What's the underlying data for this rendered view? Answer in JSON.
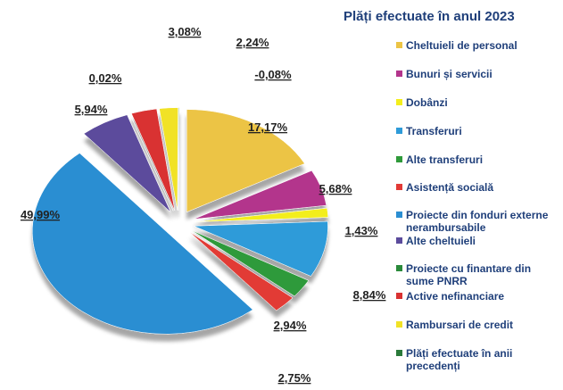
{
  "chart_data": {
    "type": "pie",
    "title": "Plăți efectuate în anul 2023",
    "categories": [
      "Cheltuieli de personal",
      "Bunuri și servicii",
      "Dobânzi",
      "Transferuri",
      "Alte transferuri",
      "Asistență socială",
      "Proiecte din fonduri externe nerambursabile",
      "Alte cheltuieli",
      "Proiecte cu finantare din sume PNRR",
      "Active nefinanciare",
      "Rambursari de credit",
      "Plăți efectuate în anii precedenți"
    ],
    "values": [
      17.17,
      5.68,
      1.43,
      8.84,
      2.94,
      2.75,
      49.99,
      5.94,
      0.02,
      3.08,
      2.24,
      -0.08
    ],
    "value_labels": [
      "17,17%",
      "5,68%",
      "1,43%",
      "8,84%",
      "2,94%",
      "2,75%",
      "49,99%",
      "5,94%",
      "0,02%",
      "3,08%",
      "2,24%",
      "-0,08%"
    ],
    "colors": [
      "#ecc445",
      "#b3358c",
      "#f3ee1c",
      "#2e9bd9",
      "#2f9a3a",
      "#e23a36",
      "#2b8ed2",
      "#5b4b9c",
      "#2a8a3a",
      "#d93232",
      "#f1e226",
      "#2a7a3a"
    ],
    "legend": "right"
  }
}
